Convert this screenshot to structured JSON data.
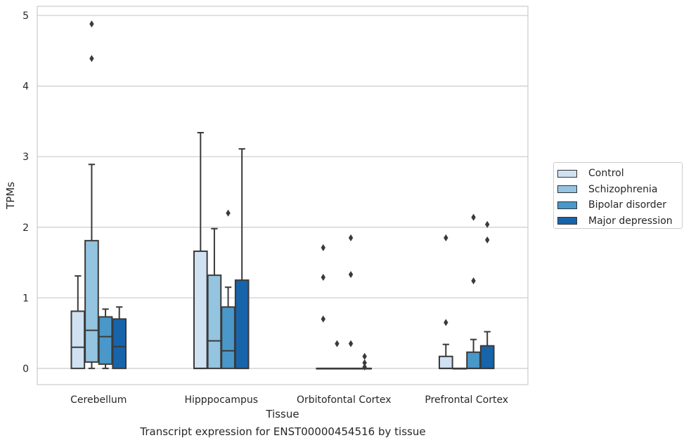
{
  "caption": "Transcript expression for ENST00000454516 by tissue",
  "chart_data": {
    "type": "box",
    "xlabel": "Tissue",
    "ylabel": "TPMs",
    "ylim": [
      -0.23,
      5.13
    ],
    "yticks": [
      0,
      1,
      2,
      3,
      4,
      5
    ],
    "grid": "horizontal",
    "legend_position": "right",
    "categories": [
      "Cerebellum",
      "Hipppocampus",
      "Orbitofontal Cortex",
      "Prefrontal Cortex"
    ],
    "series": [
      {
        "name": "Control",
        "color": "#d0e1f2",
        "boxes": [
          {
            "whislo": 0,
            "q1": 0,
            "med": 0.3,
            "q3": 0.81,
            "whishi": 1.31,
            "fliers": []
          },
          {
            "whislo": 0,
            "q1": 0,
            "med": 0,
            "q3": 1.66,
            "whishi": 3.34,
            "fliers": []
          },
          {
            "whislo": 0,
            "q1": 0,
            "med": 0,
            "q3": 0,
            "whishi": 0,
            "fliers": [
              0.7,
              1.29,
              1.71
            ]
          },
          {
            "whislo": 0,
            "q1": 0,
            "med": 0,
            "q3": 0.17,
            "whishi": 0.34,
            "fliers": [
              0.65,
              1.85
            ]
          }
        ]
      },
      {
        "name": "Schizophrenia",
        "color": "#94c4df",
        "boxes": [
          {
            "whislo": 0,
            "q1": 0.09,
            "med": 0.54,
            "q3": 1.81,
            "whishi": 2.89,
            "fliers": [
              4.39,
              4.88
            ]
          },
          {
            "whislo": 0,
            "q1": 0,
            "med": 0.39,
            "q3": 1.32,
            "whishi": 1.98,
            "fliers": []
          },
          {
            "whislo": 0,
            "q1": 0,
            "med": 0,
            "q3": 0,
            "whishi": 0,
            "fliers": [
              0.35
            ]
          },
          {
            "whislo": 0,
            "q1": 0,
            "med": 0,
            "q3": 0,
            "whishi": 0,
            "fliers": []
          }
        ]
      },
      {
        "name": "Bipolar disorder",
        "color": "#4a98c9",
        "boxes": [
          {
            "whislo": 0,
            "q1": 0.06,
            "med": 0.45,
            "q3": 0.73,
            "whishi": 0.84,
            "fliers": []
          },
          {
            "whislo": 0,
            "q1": 0,
            "med": 0.25,
            "q3": 0.87,
            "whishi": 1.15,
            "fliers": [
              2.2
            ]
          },
          {
            "whislo": 0,
            "q1": 0,
            "med": 0,
            "q3": 0,
            "whishi": 0,
            "fliers": [
              0.35,
              1.33,
              1.85
            ]
          },
          {
            "whislo": 0,
            "q1": 0,
            "med": 0,
            "q3": 0.23,
            "whishi": 0.41,
            "fliers": [
              1.24,
              2.14
            ]
          }
        ]
      },
      {
        "name": "Major depression",
        "color": "#1764ab",
        "boxes": [
          {
            "whislo": 0,
            "q1": 0,
            "med": 0.31,
            "q3": 0.7,
            "whishi": 0.87,
            "fliers": []
          },
          {
            "whislo": 0,
            "q1": 0,
            "med": 0,
            "q3": 1.25,
            "whishi": 3.11,
            "fliers": []
          },
          {
            "whislo": 0,
            "q1": 0,
            "med": 0,
            "q3": 0,
            "whishi": 0,
            "fliers": [
              0.02,
              0.08,
              0.17
            ]
          },
          {
            "whislo": 0,
            "q1": 0,
            "med": 0,
            "q3": 0.32,
            "whishi": 0.52,
            "fliers": [
              1.82,
              2.04
            ]
          }
        ]
      }
    ]
  }
}
